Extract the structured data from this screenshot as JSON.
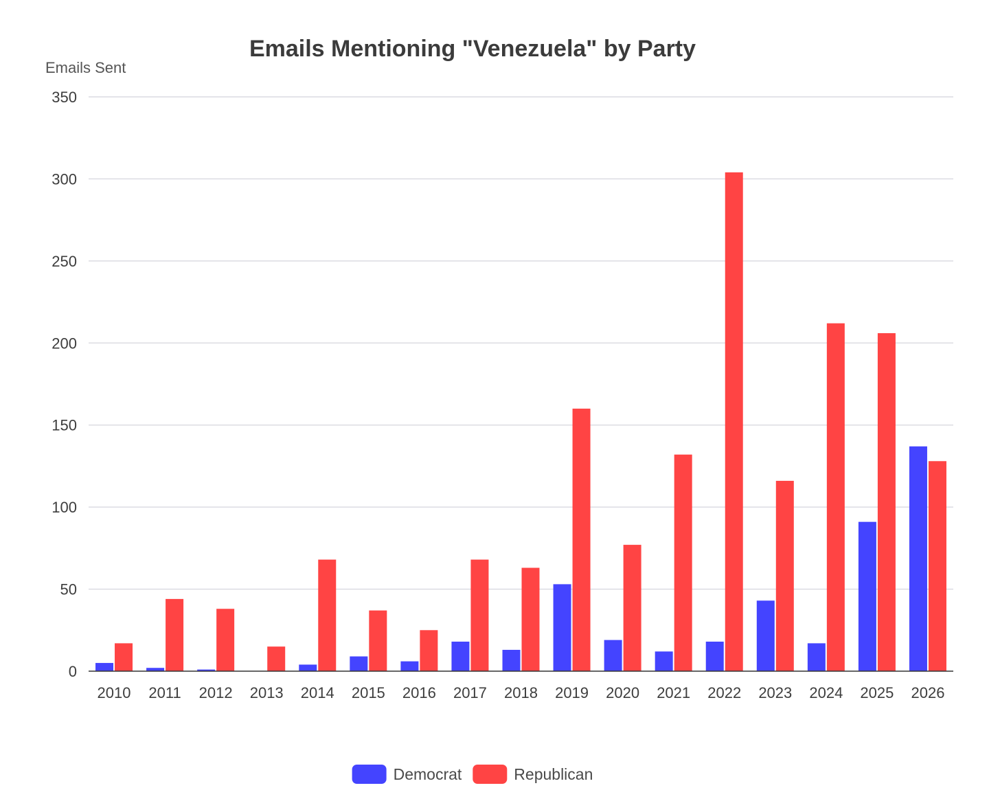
{
  "chart_data": {
    "type": "bar",
    "title": "Emails Mentioning \"Venezuela\" by Party",
    "xlabel": "",
    "ylabel": "Emails Sent",
    "ylim": [
      0,
      350
    ],
    "yticks": [
      0,
      50,
      100,
      150,
      200,
      250,
      300,
      350
    ],
    "grid": true,
    "legend_position": "bottom-center",
    "categories": [
      "2010",
      "2011",
      "2012",
      "2013",
      "2014",
      "2015",
      "2016",
      "2017",
      "2018",
      "2019",
      "2020",
      "2021",
      "2022",
      "2023",
      "2024",
      "2025",
      "2026"
    ],
    "series": [
      {
        "name": "Democrat",
        "color": "#4444ff",
        "values": [
          5,
          2,
          1,
          0,
          4,
          9,
          6,
          18,
          13,
          53,
          19,
          12,
          18,
          43,
          17,
          91,
          137
        ]
      },
      {
        "name": "Republican",
        "color": "#ff4444",
        "values": [
          17,
          44,
          38,
          15,
          68,
          37,
          25,
          68,
          63,
          160,
          77,
          132,
          304,
          116,
          212,
          206,
          128
        ]
      }
    ]
  }
}
